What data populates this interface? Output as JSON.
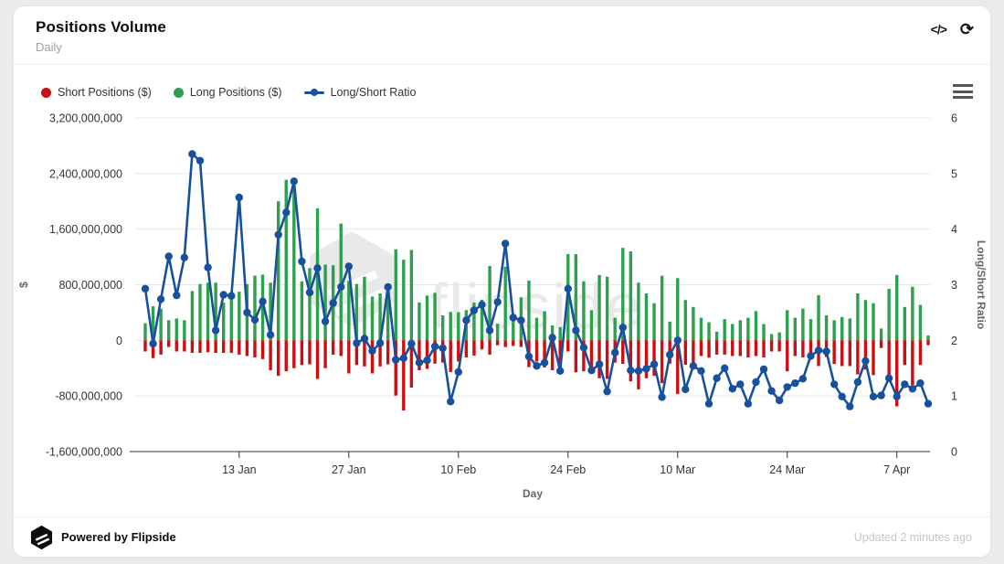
{
  "header": {
    "title": "Positions Volume",
    "subtitle": "Daily",
    "icons": {
      "code": "</>",
      "refresh": "⟳",
      "menu": "hamburger-menu"
    }
  },
  "legend": [
    {
      "label": "Short Positions ($)",
      "color": "#cc0e13",
      "marker": "circle"
    },
    {
      "label": "Long Positions ($)",
      "color": "#2da04e",
      "marker": "circle"
    },
    {
      "label": "Long/Short Ratio",
      "color": "#17519e",
      "marker": "line-dot"
    }
  ],
  "chart_data": {
    "type": "combo-column-line",
    "x_axis": {
      "title": "Day",
      "tick_labels": [
        "13 Jan",
        "27 Jan",
        "10 Feb",
        "24 Feb",
        "10 Mar",
        "24 Mar",
        "7 Apr"
      ],
      "tick_indices": [
        12,
        26,
        40,
        54,
        68,
        82,
        96
      ]
    },
    "left_axis": {
      "title": "$",
      "min": -1600000000,
      "max": 3200000000,
      "tick_step": 800000000
    },
    "right_axis": {
      "title": "Long/Short Ratio",
      "min": 0,
      "max": 6,
      "tick_step": 1
    },
    "watermark_text": "flipside",
    "grid": true,
    "legend_position": "top-left",
    "unit_note": "column values in millions of USD",
    "series": [
      {
        "name": "Short Positions ($)",
        "type": "column",
        "axis": "left",
        "color": "#cc0e13",
        "values": [
          -160,
          -255,
          -205,
          -95,
          -160,
          -160,
          -180,
          -180,
          -170,
          -180,
          -180,
          -180,
          -205,
          -225,
          -245,
          -270,
          -430,
          -510,
          -445,
          -400,
          -355,
          -345,
          -555,
          -400,
          -205,
          -225,
          -475,
          -355,
          -375,
          -475,
          -375,
          -345,
          -795,
          -1010,
          -680,
          -430,
          -410,
          -335,
          -320,
          -455,
          -305,
          -245,
          -220,
          -130,
          -205,
          -70,
          -95,
          -80,
          -95,
          -385,
          -305,
          -390,
          -430,
          -375,
          -160,
          -460,
          -445,
          -420,
          -545,
          -555,
          -320,
          -340,
          -590,
          -705,
          -545,
          -510,
          -615,
          -335,
          -770,
          -350,
          -355,
          -225,
          -250,
          -205,
          -205,
          -225,
          -225,
          -245,
          -225,
          -245,
          -160,
          -160,
          -445,
          -225,
          -245,
          -250,
          -370,
          -240,
          -340,
          -370,
          -370,
          -490,
          -420,
          -500,
          -110,
          -515,
          -950,
          -355,
          -640,
          -355,
          -70
        ]
      },
      {
        "name": "Long Positions ($)",
        "type": "column",
        "axis": "left",
        "color": "#2da04e",
        "values": [
          245,
          490,
          455,
          290,
          315,
          290,
          710,
          810,
          830,
          830,
          545,
          595,
          700,
          810,
          930,
          945,
          830,
          2000,
          2310,
          2200,
          850,
          1040,
          1900,
          1090,
          1080,
          1680,
          855,
          810,
          915,
          630,
          675,
          780,
          1310,
          1160,
          1300,
          545,
          645,
          685,
          360,
          410,
          405,
          435,
          545,
          585,
          1070,
          240,
          1060,
          305,
          620,
          860,
          325,
          420,
          215,
          190,
          1240,
          1240,
          850,
          435,
          940,
          915,
          325,
          1330,
          1280,
          830,
          675,
          535,
          930,
          270,
          895,
          580,
          480,
          325,
          260,
          125,
          305,
          235,
          290,
          325,
          420,
          235,
          90,
          115,
          435,
          325,
          455,
          305,
          650,
          360,
          290,
          335,
          315,
          675,
          580,
          535,
          170,
          740,
          940,
          480,
          770,
          510,
          70
        ]
      },
      {
        "name": "Long/Short Ratio",
        "type": "line",
        "axis": "right",
        "color": "#17519e",
        "values": [
          2.93,
          1.94,
          2.74,
          3.51,
          2.81,
          3.49,
          5.35,
          5.23,
          3.31,
          2.18,
          2.82,
          2.8,
          4.57,
          2.5,
          2.37,
          2.7,
          2.1,
          3.9,
          4.3,
          4.86,
          3.42,
          2.86,
          3.3,
          2.34,
          2.67,
          2.96,
          3.33,
          1.95,
          2.03,
          1.81,
          1.95,
          2.96,
          1.65,
          1.68,
          1.94,
          1.6,
          1.64,
          1.89,
          1.86,
          0.9,
          1.43,
          2.36,
          2.54,
          2.64,
          2.18,
          2.69,
          3.74,
          2.41,
          2.36,
          1.71,
          1.54,
          1.6,
          2.05,
          1.45,
          2.93,
          2.18,
          1.87,
          1.46,
          1.57,
          1.08,
          1.78,
          2.23,
          1.46,
          1.45,
          1.49,
          1.57,
          0.98,
          1.74,
          2.0,
          1.12,
          1.54,
          1.45,
          0.86,
          1.32,
          1.5,
          1.13,
          1.21,
          0.86,
          1.25,
          1.48,
          1.09,
          0.92,
          1.16,
          1.23,
          1.31,
          1.72,
          1.82,
          1.8,
          1.21,
          0.99,
          0.81,
          1.25,
          1.63,
          0.99,
          1.01,
          1.32,
          0.99,
          1.21,
          1.13,
          1.23,
          0.86
        ]
      }
    ]
  },
  "footer": {
    "powered_by": "Powered by Flipside",
    "updated": "Updated 2 minutes ago"
  }
}
